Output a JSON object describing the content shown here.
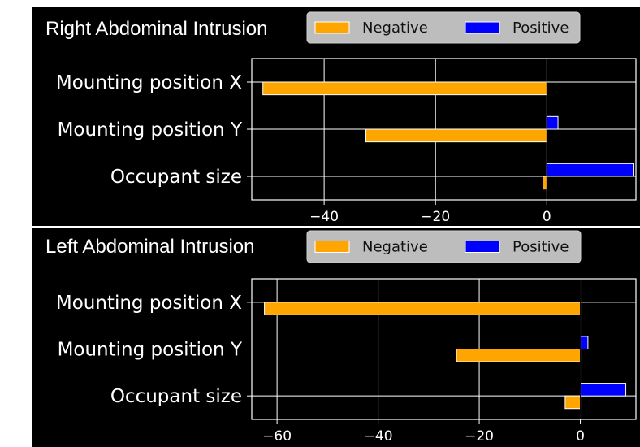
{
  "chart_data": [
    {
      "type": "bar",
      "orientation": "horizontal",
      "title": "Right Abdominal Intrusion",
      "categories": [
        "Mounting position X",
        "Mounting position Y",
        "Occupant size"
      ],
      "series": [
        {
          "name": "Negative",
          "color": "#FFA500",
          "values": [
            -51,
            -32.5,
            -0.7
          ]
        },
        {
          "name": "Positive",
          "color": "#0000FF",
          "values": [
            0,
            2,
            15.5
          ]
        }
      ],
      "xlim": [
        -53,
        16
      ],
      "xticks": [
        -40,
        -20,
        0
      ],
      "xtick_labels": [
        "−40",
        "−20",
        "0"
      ],
      "grid": true,
      "legend_position": "top"
    },
    {
      "type": "bar",
      "orientation": "horizontal",
      "title": "Left Abdominal Intrusion",
      "categories": [
        "Mounting position X",
        "Mounting position Y",
        "Occupant size"
      ],
      "series": [
        {
          "name": "Negative",
          "color": "#FFA500",
          "values": [
            -62.5,
            -24.5,
            -3
          ]
        },
        {
          "name": "Positive",
          "color": "#0000FF",
          "values": [
            0,
            1.5,
            9
          ]
        }
      ],
      "xlim": [
        -65,
        11
      ],
      "xticks": [
        -60,
        -40,
        -20,
        0
      ],
      "xtick_labels": [
        "−60",
        "−40",
        "−20",
        "0"
      ],
      "grid": true,
      "legend_position": "top"
    }
  ]
}
